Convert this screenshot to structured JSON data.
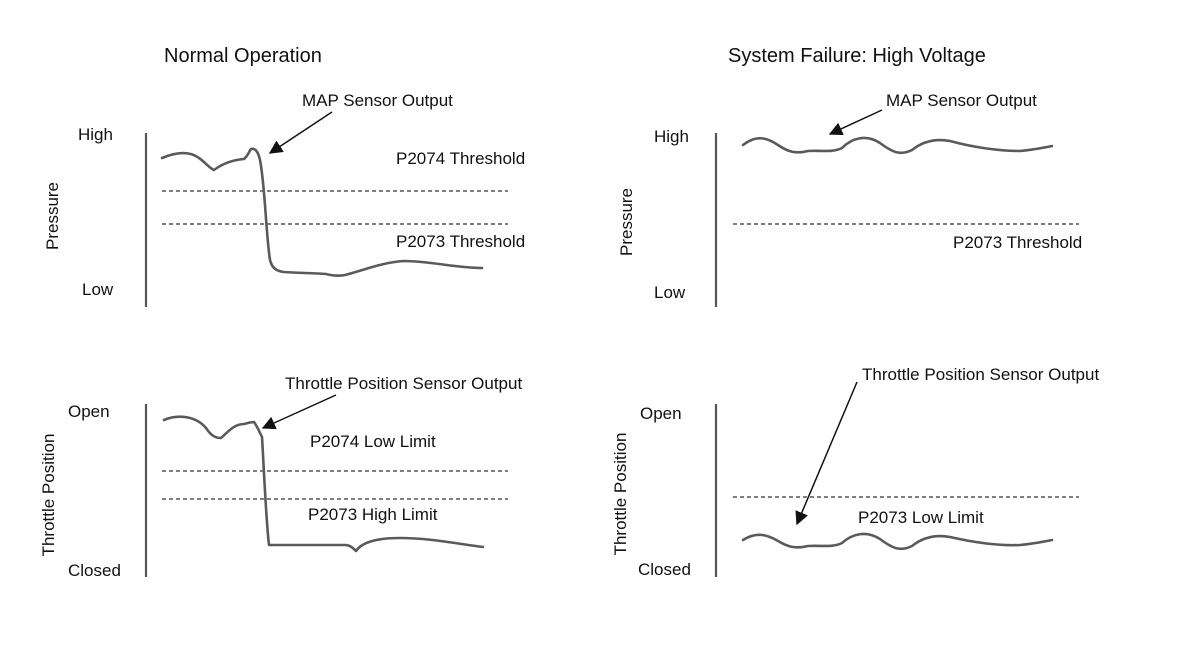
{
  "panels": {
    "normal": {
      "title": "Normal Operation",
      "pressure": {
        "y_axis_label": "Pressure",
        "high_label": "High",
        "low_label": "Low",
        "signal_label": "MAP Sensor Output",
        "upper_threshold_label": "P2074 Threshold",
        "lower_threshold_label": "P2073 Threshold"
      },
      "throttle": {
        "y_axis_label": "Throttle Position",
        "high_label": "Open",
        "low_label": "Closed",
        "signal_label": "Throttle Position Sensor Output",
        "upper_limit_label": "P2074 Low Limit",
        "lower_limit_label": "P2073 High Limit"
      }
    },
    "failure": {
      "title": "System Failure: High Voltage",
      "pressure": {
        "y_axis_label": "Pressure",
        "high_label": "High",
        "low_label": "Low",
        "signal_label": "MAP Sensor Output",
        "threshold_label": "P2073 Threshold"
      },
      "throttle": {
        "y_axis_label": "Throttle Position",
        "high_label": "Open",
        "low_label": "Closed",
        "signal_label": "Throttle Position Sensor Output",
        "limit_label": "P2073 Low Limit"
      }
    }
  },
  "colors": {
    "signal": "#5a5a5a",
    "axis": "#555555",
    "threshold": "#555555",
    "text": "#111111"
  }
}
